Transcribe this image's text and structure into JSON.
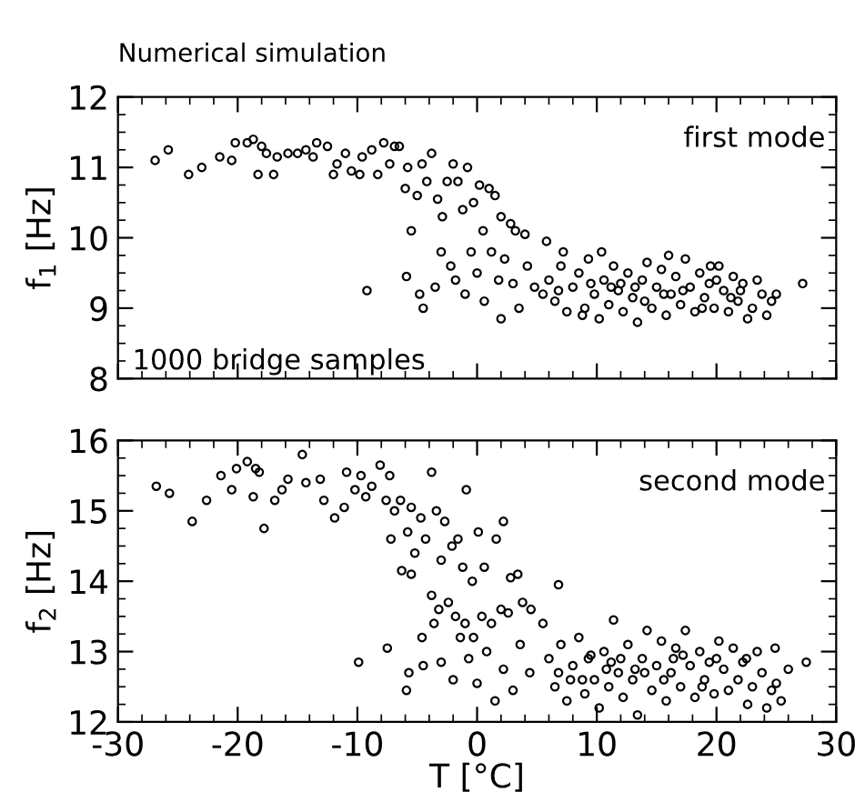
{
  "chart_data": [
    {
      "type": "scatter",
      "title": "Numerical simulation",
      "ylabel": "f$_{1}$ [Hz]",
      "annotations": [
        "first mode",
        "1000 bridge samples"
      ],
      "xlim": [
        -30,
        30
      ],
      "ylim": [
        8,
        12
      ],
      "yticks": [
        8,
        9,
        10,
        11,
        12
      ],
      "xticks": [
        {
          "value": -30,
          "label": null
        },
        {
          "value": -20,
          "label": null
        },
        {
          "value": -10,
          "label": null
        },
        {
          "value": 0,
          "label": null
        },
        {
          "value": 10,
          "label": null
        },
        {
          "value": 20,
          "label": null
        },
        {
          "value": 30,
          "label": null
        }
      ],
      "tick_labels": "y",
      "marker": "circle",
      "grid": false,
      "legend": false,
      "series": [
        {
          "color": "#000000",
          "x": [
            -26.9,
            -25.8,
            -24.1,
            -23,
            -21.5,
            -20.5,
            -20.2,
            -19.2,
            -18.7,
            -18.3,
            -18,
            -17.6,
            -17,
            -16.7,
            -15.8,
            -15,
            -14.3,
            -13.7,
            -13.4,
            -12.5,
            -12,
            -11.7,
            -11,
            -10.5,
            -9.8,
            -9.6,
            -8.8,
            -8.3,
            -7.8,
            -7.3,
            -6.9,
            -6.5,
            -6,
            -5.8,
            -5.5,
            -5,
            -4.6,
            -4.2,
            -3.8,
            -3.3,
            -2.9,
            -2.5,
            -2,
            -1.6,
            -1.2,
            -0.8,
            -0.3,
            0.2,
            0.5,
            1,
            1.5,
            2,
            2.8,
            3.2,
            4,
            5.8,
            -9.2,
            -5.9,
            -4.5,
            -4.8,
            -3.5,
            -3,
            -2.2,
            -1.8,
            -1,
            -0.5,
            0,
            0.6,
            1.2,
            1.8,
            2.3,
            3,
            3.5,
            4.2,
            4.8,
            5.5,
            2,
            6,
            6.5,
            7,
            7.5,
            8,
            8.5,
            9,
            9.3,
            9.8,
            10.2,
            10.6,
            11,
            11.4,
            11.8,
            12.2,
            12.6,
            13,
            13.4,
            13.8,
            14.2,
            14.6,
            15,
            15.4,
            15.8,
            16.2,
            16.6,
            17,
            17.4,
            17.8,
            18.2,
            18.6,
            19,
            19.4,
            19.8,
            20.2,
            20.6,
            21,
            21.4,
            21.8,
            22.2,
            22.6,
            23,
            23.4,
            23.8,
            24.2,
            24.6,
            25,
            27.2,
            7.2,
            10.4,
            16,
            19.5,
            8.8,
            12,
            14,
            17.2,
            20,
            6.8,
            11.2,
            15.6,
            18.8,
            22,
            9.5,
            13.2,
            21.2
          ],
          "values": [
            11.1,
            11.25,
            10.9,
            11.0,
            11.15,
            11.1,
            11.35,
            11.35,
            11.4,
            10.9,
            11.3,
            11.2,
            10.9,
            11.15,
            11.2,
            11.2,
            11.25,
            11.15,
            11.35,
            11.3,
            10.9,
            11.05,
            11.2,
            10.95,
            10.9,
            11.15,
            11.25,
            10.9,
            11.35,
            11.05,
            11.3,
            11.3,
            10.7,
            11.0,
            10.1,
            10.6,
            11.05,
            10.8,
            11.2,
            10.55,
            10.3,
            10.8,
            11.05,
            10.8,
            10.4,
            11.0,
            10.5,
            10.75,
            10.1,
            10.7,
            10.6,
            10.3,
            10.2,
            10.1,
            10.05,
            9.95,
            9.25,
            9.45,
            9.0,
            9.2,
            9.3,
            9.8,
            9.6,
            9.4,
            9.2,
            9.8,
            9.5,
            9.1,
            9.8,
            9.4,
            9.7,
            9.35,
            9.0,
            9.6,
            9.3,
            9.2,
            8.85,
            9.4,
            9.1,
            9.6,
            8.95,
            9.3,
            9.5,
            9.0,
            9.7,
            9.2,
            8.85,
            9.4,
            9.05,
            9.6,
            9.25,
            8.95,
            9.5,
            9.15,
            8.8,
            9.4,
            9.65,
            9.0,
            9.3,
            9.55,
            8.9,
            9.2,
            9.45,
            9.05,
            9.7,
            9.3,
            8.95,
            9.5,
            9.15,
            9.35,
            9.0,
            9.6,
            9.25,
            8.95,
            9.45,
            9.1,
            9.35,
            8.85,
            9.0,
            9.4,
            9.2,
            8.9,
            9.1,
            9.2,
            9.35,
            9.8,
            9.8,
            9.75,
            9.6,
            8.9,
            9.35,
            9.1,
            9.25,
            9.4,
            9.25,
            9.3,
            9.2,
            9.0,
            9.25,
            9.35,
            9.3,
            9.15
          ]
        }
      ]
    },
    {
      "type": "scatter",
      "xlabel": "T [°C]",
      "ylabel": "f$_{2}$ [Hz]",
      "annotations": [
        "second mode"
      ],
      "xlim": [
        -30,
        30
      ],
      "ylim": [
        12,
        16
      ],
      "yticks": [
        12,
        13,
        14,
        15,
        16
      ],
      "xticks": [
        -30,
        -20,
        -10,
        0,
        10,
        20,
        30
      ],
      "marker": "circle",
      "grid": false,
      "legend": false,
      "series": [
        {
          "color": "#000000",
          "x": [
            -26.8,
            -25.7,
            -23.8,
            -22.6,
            -21.4,
            -20.5,
            -20.1,
            -19.2,
            -18.5,
            -18.2,
            -18.7,
            -17.8,
            -16.9,
            -16.3,
            -15.8,
            -14.6,
            -14.3,
            -13.1,
            -12.8,
            -11.9,
            -11.1,
            -10.9,
            -10.2,
            -9.7,
            -9.3,
            -8.8,
            -8.1,
            -7.6,
            -7.3,
            -6.9,
            -7.2,
            -6.4,
            -5.8,
            -5.5,
            -5.2,
            -4.7,
            -4.3,
            -3.8,
            -3.4,
            -3.0,
            -2.7,
            -2.1,
            -1.6,
            -1.2,
            -0.9,
            -0.4,
            0.1,
            0.6,
            1.6,
            2.2,
            2.8,
            3.4,
            4.5,
            6.8,
            -6.3,
            -5.5,
            -3.8,
            -3.2,
            -2.4,
            -1.8,
            -1.0,
            -0.3,
            0.4,
            1.2,
            2.0,
            2.6,
            3.8,
            -9.9,
            -7.5,
            -5.7,
            -5.9,
            -4.5,
            -4.6,
            -3.6,
            -3.0,
            -2.0,
            -1.4,
            -0.7,
            0.0,
            0.8,
            1.5,
            2.2,
            3.0,
            3.6,
            4.4,
            5.5,
            6,
            6.5,
            7,
            7.5,
            8,
            8.5,
            9,
            9.3,
            9.8,
            10.2,
            10.6,
            11,
            11.4,
            11.8,
            12.2,
            12.6,
            13,
            13.4,
            13.8,
            14.2,
            14.6,
            15,
            15.4,
            15.8,
            16.2,
            16.6,
            17,
            17.4,
            17.8,
            18.2,
            18.6,
            19,
            19.4,
            19.8,
            20.2,
            20.6,
            21,
            21.4,
            21.8,
            22.2,
            22.6,
            23,
            23.4,
            23.8,
            24.2,
            24.6,
            25,
            25.4,
            26,
            27.5,
            24.9,
            22.5,
            8.8,
            12,
            14,
            17.2,
            20,
            6.8,
            11.2,
            15.6,
            18.8,
            9.5,
            13.2,
            16.4,
            7.8,
            10.8
          ],
          "values": [
            15.35,
            15.25,
            14.85,
            15.15,
            15.5,
            15.3,
            15.6,
            15.7,
            15.6,
            15.55,
            15.2,
            14.75,
            15.15,
            15.3,
            15.45,
            15.8,
            15.4,
            15.45,
            15.15,
            14.9,
            15.05,
            15.55,
            15.3,
            15.5,
            15.2,
            15.35,
            15.65,
            15.15,
            15.5,
            15.0,
            14.6,
            15.15,
            14.7,
            15.05,
            14.4,
            14.9,
            14.6,
            15.55,
            15.0,
            14.3,
            14.85,
            14.5,
            14.6,
            14.2,
            15.3,
            14.0,
            14.7,
            14.2,
            14.6,
            14.85,
            14.05,
            14.1,
            13.6,
            13.95,
            14.15,
            14.1,
            13.8,
            13.6,
            13.7,
            13.5,
            13.4,
            13.2,
            13.5,
            13.4,
            13.6,
            13.55,
            13.7,
            12.85,
            13.05,
            12.7,
            12.45,
            12.8,
            13.2,
            13.4,
            12.85,
            12.6,
            13.2,
            12.9,
            12.55,
            13.0,
            12.3,
            12.75,
            12.45,
            13.1,
            12.7,
            13.4,
            12.9,
            12.5,
            13.1,
            12.3,
            12.8,
            13.2,
            12.4,
            12.9,
            12.6,
            12.2,
            13.0,
            12.5,
            13.45,
            12.7,
            12.35,
            13.1,
            12.6,
            12.1,
            12.9,
            13.3,
            12.45,
            12.8,
            13.15,
            12.3,
            12.7,
            13.05,
            12.5,
            13.3,
            12.8,
            12.35,
            13.0,
            12.6,
            12.85,
            12.4,
            13.15,
            12.75,
            12.45,
            13.05,
            12.6,
            12.85,
            12.25,
            12.5,
            13.0,
            12.7,
            12.2,
            12.45,
            12.55,
            12.3,
            12.75,
            12.85,
            13.05,
            12.9,
            12.6,
            12.9,
            12.7,
            12.95,
            12.9,
            12.7,
            12.85,
            12.6,
            12.5,
            12.95,
            12.75,
            12.9,
            12.6,
            12.75
          ]
        }
      ]
    }
  ]
}
